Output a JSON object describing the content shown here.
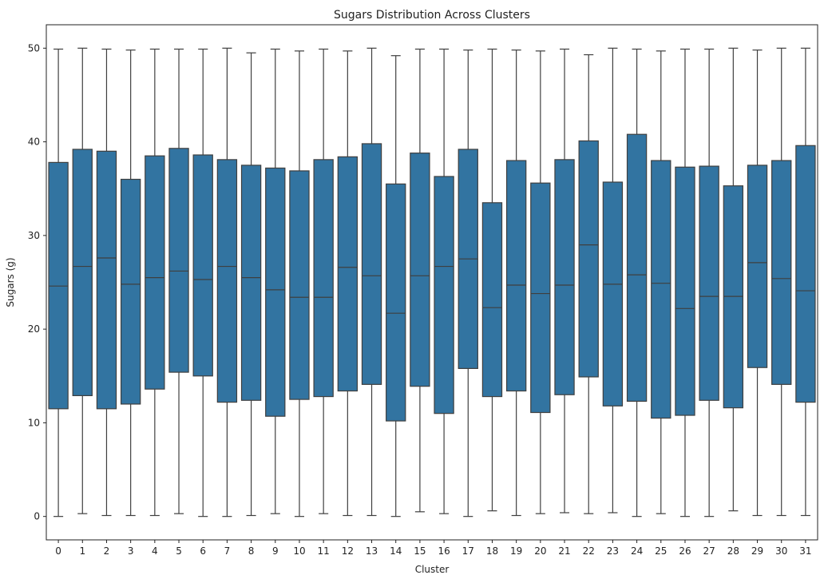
{
  "chart_data": {
    "type": "box",
    "title": "Sugars Distribution Across Clusters",
    "xlabel": "Cluster",
    "ylabel": "Sugars (g)",
    "ylim": [
      -2.5,
      52.5
    ],
    "yticks": [
      0,
      10,
      20,
      30,
      40,
      50
    ],
    "color": "#3274a1",
    "categories": [
      "0",
      "1",
      "2",
      "3",
      "4",
      "5",
      "6",
      "7",
      "8",
      "9",
      "10",
      "11",
      "12",
      "13",
      "14",
      "15",
      "16",
      "17",
      "18",
      "19",
      "20",
      "21",
      "22",
      "23",
      "24",
      "25",
      "26",
      "27",
      "28",
      "29",
      "30",
      "31"
    ],
    "boxes": [
      {
        "min": 0.0,
        "q1": 11.5,
        "median": 24.6,
        "q3": 37.8,
        "max": 49.9
      },
      {
        "min": 0.3,
        "q1": 12.9,
        "median": 26.7,
        "q3": 39.2,
        "max": 50.0
      },
      {
        "min": 0.1,
        "q1": 11.5,
        "median": 27.6,
        "q3": 39.0,
        "max": 49.9
      },
      {
        "min": 0.1,
        "q1": 12.0,
        "median": 24.8,
        "q3": 36.0,
        "max": 49.8
      },
      {
        "min": 0.1,
        "q1": 13.6,
        "median": 25.5,
        "q3": 38.5,
        "max": 49.9
      },
      {
        "min": 0.3,
        "q1": 15.4,
        "median": 26.2,
        "q3": 39.3,
        "max": 49.9
      },
      {
        "min": 0.0,
        "q1": 15.0,
        "median": 25.3,
        "q3": 38.6,
        "max": 49.9
      },
      {
        "min": 0.0,
        "q1": 12.2,
        "median": 26.7,
        "q3": 38.1,
        "max": 50.0
      },
      {
        "min": 0.1,
        "q1": 12.4,
        "median": 25.5,
        "q3": 37.5,
        "max": 49.5
      },
      {
        "min": 0.3,
        "q1": 10.7,
        "median": 24.2,
        "q3": 37.2,
        "max": 49.9
      },
      {
        "min": 0.0,
        "q1": 12.5,
        "median": 23.4,
        "q3": 36.9,
        "max": 49.7
      },
      {
        "min": 0.3,
        "q1": 12.8,
        "median": 23.4,
        "q3": 38.1,
        "max": 49.9
      },
      {
        "min": 0.1,
        "q1": 13.4,
        "median": 26.6,
        "q3": 38.4,
        "max": 49.7
      },
      {
        "min": 0.1,
        "q1": 14.1,
        "median": 25.7,
        "q3": 39.8,
        "max": 50.0
      },
      {
        "min": 0.0,
        "q1": 10.2,
        "median": 21.7,
        "q3": 35.5,
        "max": 49.2
      },
      {
        "min": 0.5,
        "q1": 13.9,
        "median": 25.7,
        "q3": 38.8,
        "max": 49.9
      },
      {
        "min": 0.3,
        "q1": 11.0,
        "median": 26.7,
        "q3": 36.3,
        "max": 49.9
      },
      {
        "min": 0.0,
        "q1": 15.8,
        "median": 27.5,
        "q3": 39.2,
        "max": 49.8
      },
      {
        "min": 0.6,
        "q1": 12.8,
        "median": 22.3,
        "q3": 33.5,
        "max": 49.9
      },
      {
        "min": 0.1,
        "q1": 13.4,
        "median": 24.7,
        "q3": 38.0,
        "max": 49.8
      },
      {
        "min": 0.3,
        "q1": 11.1,
        "median": 23.8,
        "q3": 35.6,
        "max": 49.7
      },
      {
        "min": 0.4,
        "q1": 13.0,
        "median": 24.7,
        "q3": 38.1,
        "max": 49.9
      },
      {
        "min": 0.3,
        "q1": 14.9,
        "median": 29.0,
        "q3": 40.1,
        "max": 49.3
      },
      {
        "min": 0.4,
        "q1": 11.8,
        "median": 24.8,
        "q3": 35.7,
        "max": 50.0
      },
      {
        "min": 0.0,
        "q1": 12.3,
        "median": 25.8,
        "q3": 40.8,
        "max": 49.9
      },
      {
        "min": 0.3,
        "q1": 10.5,
        "median": 24.9,
        "q3": 38.0,
        "max": 49.7
      },
      {
        "min": 0.0,
        "q1": 10.8,
        "median": 22.2,
        "q3": 37.3,
        "max": 49.9
      },
      {
        "min": 0.0,
        "q1": 12.4,
        "median": 23.5,
        "q3": 37.4,
        "max": 49.9
      },
      {
        "min": 0.6,
        "q1": 11.6,
        "median": 23.5,
        "q3": 35.3,
        "max": 50.0
      },
      {
        "min": 0.1,
        "q1": 15.9,
        "median": 27.1,
        "q3": 37.5,
        "max": 49.8
      },
      {
        "min": 0.1,
        "q1": 14.1,
        "median": 25.4,
        "q3": 38.0,
        "max": 50.0
      },
      {
        "min": 0.1,
        "q1": 12.2,
        "median": 24.1,
        "q3": 39.6,
        "max": 50.0
      }
    ],
    "grid": false,
    "legend": "none"
  }
}
